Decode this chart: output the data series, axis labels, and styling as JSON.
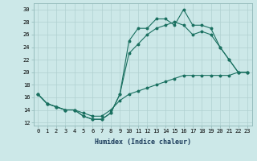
{
  "title": "",
  "xlabel": "Humidex (Indice chaleur)",
  "bg_color": "#cce8e8",
  "grid_color": "#b0d0d0",
  "line_color": "#1a7060",
  "xlim": [
    -0.5,
    23.5
  ],
  "ylim": [
    11.5,
    31.0
  ],
  "yticks": [
    12,
    14,
    16,
    18,
    20,
    22,
    24,
    26,
    28,
    30
  ],
  "xticks": [
    0,
    1,
    2,
    3,
    4,
    5,
    6,
    7,
    8,
    9,
    10,
    11,
    12,
    13,
    14,
    15,
    16,
    17,
    18,
    19,
    20,
    21,
    22,
    23
  ],
  "series1_x": [
    0,
    1,
    2,
    3,
    4,
    5,
    6,
    7,
    8,
    9,
    10,
    11,
    12,
    13,
    14,
    15,
    16,
    17,
    18,
    19,
    20,
    21,
    22,
    23
  ],
  "series1_y": [
    16.5,
    15.0,
    14.5,
    14.0,
    14.0,
    13.0,
    12.5,
    12.5,
    13.5,
    16.5,
    25.0,
    27.0,
    27.0,
    28.5,
    28.5,
    27.5,
    30.0,
    27.5,
    27.5,
    27.0,
    24.0,
    22.0,
    20.0,
    20.0
  ],
  "series2_x": [
    0,
    1,
    2,
    3,
    4,
    5,
    6,
    7,
    8,
    9,
    10,
    11,
    12,
    13,
    14,
    15,
    16,
    17,
    18,
    19,
    20,
    21,
    22,
    23
  ],
  "series2_y": [
    16.5,
    15.0,
    14.5,
    14.0,
    14.0,
    13.0,
    12.5,
    12.5,
    13.5,
    16.5,
    23.0,
    24.5,
    26.0,
    27.0,
    27.5,
    28.0,
    27.5,
    26.0,
    26.5,
    26.0,
    24.0,
    22.0,
    20.0,
    20.0
  ],
  "series3_x": [
    0,
    1,
    2,
    3,
    4,
    5,
    6,
    7,
    8,
    9,
    10,
    11,
    12,
    13,
    14,
    15,
    16,
    17,
    18,
    19,
    20,
    21,
    22,
    23
  ],
  "series3_y": [
    16.5,
    15.0,
    14.5,
    14.0,
    14.0,
    13.5,
    13.0,
    13.0,
    14.0,
    15.5,
    16.5,
    17.0,
    17.5,
    18.0,
    18.5,
    19.0,
    19.5,
    19.5,
    19.5,
    19.5,
    19.5,
    19.5,
    20.0,
    20.0
  ],
  "xlabel_fontsize": 6.0,
  "tick_fontsize": 5.0
}
